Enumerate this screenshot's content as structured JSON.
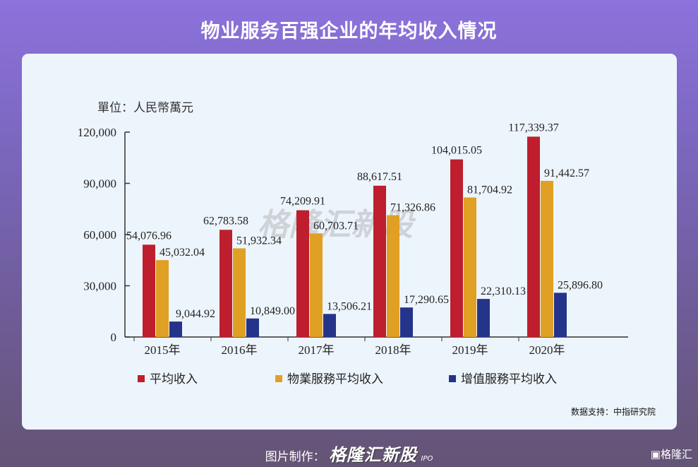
{
  "title": "物业服务百强企业的年均收入情况",
  "unit": "單位：人民幣萬元",
  "source": "数据支持：中指研究院",
  "watermark": "格隆汇新股",
  "footer": {
    "prefix": "图片制作：",
    "brand": "格隆汇新股",
    "ipo": "IPO",
    "corner": "格隆汇"
  },
  "chart_data": {
    "type": "bar",
    "categories": [
      "2015年",
      "2016年",
      "2017年",
      "2018年",
      "2019年",
      "2020年"
    ],
    "ylim": [
      0,
      120000
    ],
    "yticks": [
      "0",
      "30,000",
      "60,000",
      "90,000",
      "120,000"
    ],
    "ytick_values": [
      0,
      30000,
      60000,
      90000,
      120000
    ],
    "legend_position": "bottom",
    "series": [
      {
        "name": "平均收入",
        "color": "#be1e2d",
        "values": [
          54076.96,
          62783.58,
          74209.91,
          88617.51,
          104015.05,
          117339.37
        ],
        "labels": [
          "54,076.96",
          "62,783.58",
          "74,209.91",
          "88,617.51",
          "104,015.05",
          "117,339.37"
        ]
      },
      {
        "name": "物業服務平均收入",
        "color": "#e0a024",
        "values": [
          45032.04,
          51932.34,
          60703.71,
          71326.86,
          81704.92,
          91442.57
        ],
        "labels": [
          "45,032.04",
          "51,932.34",
          "60,703.71",
          "71,326.86",
          "81,704.92",
          "91,442.57"
        ]
      },
      {
        "name": "增值服務平均收入",
        "color": "#24348a",
        "values": [
          9044.92,
          10849.0,
          13506.21,
          17290.65,
          22310.13,
          25896.8
        ],
        "labels": [
          "9,044.92",
          "10,849.00",
          "13,506.21",
          "17,290.65",
          "22,310.13",
          "25,896.80"
        ]
      }
    ]
  }
}
